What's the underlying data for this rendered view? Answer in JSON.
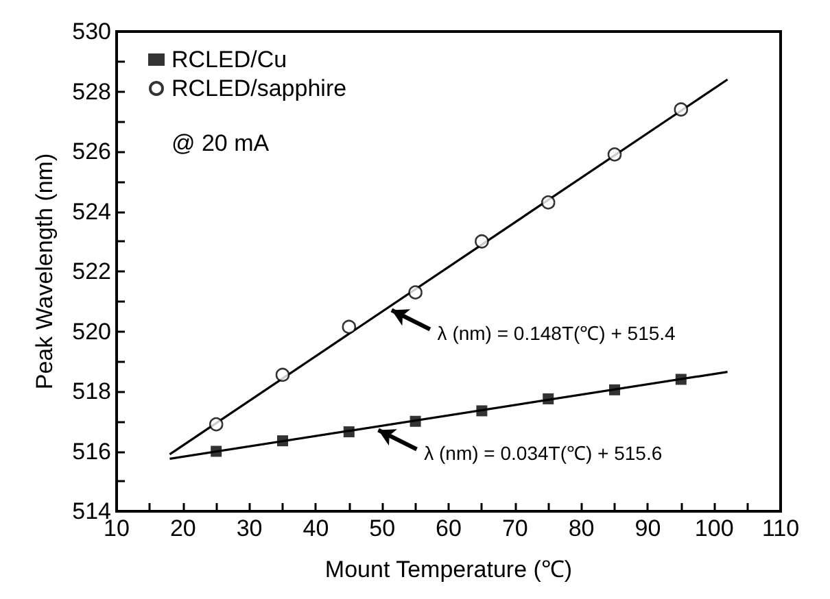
{
  "chart_data": {
    "type": "scatter",
    "xlabel": "Mount Temperature (℃)",
    "ylabel": "Peak Wavelength (nm)",
    "xlim": [
      10,
      110
    ],
    "xticks": [
      10,
      20,
      30,
      40,
      50,
      60,
      70,
      80,
      90,
      100,
      110
    ],
    "ylim": [
      514,
      530
    ],
    "yticks": [
      514,
      516,
      518,
      520,
      522,
      524,
      526,
      528,
      530
    ],
    "grid": false,
    "legend": "top left",
    "series": [
      {
        "name": "RCLED/Cu",
        "color": "#000000",
        "marker": "square",
        "x": [
          25,
          35,
          45,
          55,
          65,
          75,
          85,
          95
        ],
        "values": [
          516.0,
          516.35,
          516.65,
          517.0,
          517.35,
          517.75,
          518.05,
          518.4
        ]
      },
      {
        "name": "RCLED/sapphire",
        "color": "#000000",
        "marker": "circle",
        "x": [
          25,
          35,
          45,
          55,
          65,
          75,
          85,
          95
        ],
        "values": [
          516.9,
          518.55,
          520.15,
          521.3,
          523.0,
          524.3,
          525.9,
          527.4
        ]
      },
      {
        "type": "line",
        "color": "#000000",
        "line_style": "solid",
        "x": [
          18,
          102
        ],
        "values": [
          515.75,
          518.65
        ]
      },
      {
        "type": "line",
        "color": "#000000",
        "line_style": "solid",
        "x": [
          18,
          102
        ],
        "values": [
          515.9,
          528.4
        ]
      }
    ],
    "annotations": [
      "@ 20 mA",
      {
        "text": "λ (nm) = 0.148T(℃) + 515.4",
        "x": 51,
        "y": 520.8
      },
      {
        "text": "λ (nm) = 0.034T(℃) + 515.6",
        "x": 49,
        "y": 516.8
      }
    ]
  }
}
